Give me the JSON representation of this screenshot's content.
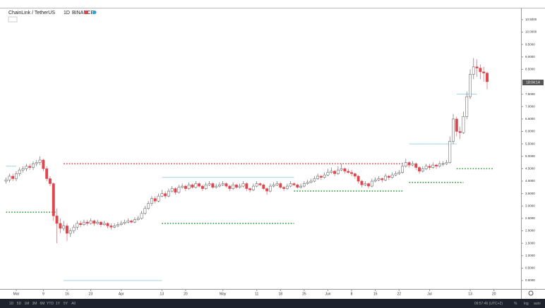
{
  "chart_data": {
    "type": "candlestick",
    "title": "ChainLink / TetherUS",
    "interval": "1D",
    "exchange": "BINANCE",
    "price_tag": "18:04:14",
    "toolbar": [
      "1D",
      "5D",
      "1M",
      "3M",
      "6M",
      "YTD",
      "1Y",
      "5Y",
      "All"
    ],
    "clock": "09:57:46 (UTC+2)",
    "toolbar_right": [
      "%",
      "log",
      "auto"
    ],
    "xlim": [
      -3.125,
      149
    ],
    "xticks": [
      {
        "value": 0,
        "label": "Mar"
      },
      {
        "value": 8,
        "label": "9"
      },
      {
        "value": 15,
        "label": "16"
      },
      {
        "value": 22,
        "label": "23"
      },
      {
        "value": 31,
        "label": "Apr"
      },
      {
        "value": 43,
        "label": "13"
      },
      {
        "value": 50,
        "label": "20"
      },
      {
        "value": 61,
        "label": "May"
      },
      {
        "value": 71,
        "label": "11"
      },
      {
        "value": 78,
        "label": "18"
      },
      {
        "value": 85,
        "label": "25"
      },
      {
        "value": 92,
        "label": "Jun"
      },
      {
        "value": 99,
        "label": "8"
      },
      {
        "value": 106,
        "label": "15"
      },
      {
        "value": 113,
        "label": "22"
      },
      {
        "value": 122,
        "label": "Jul"
      },
      {
        "value": 134,
        "label": "13"
      },
      {
        "value": 141,
        "label": "20"
      }
    ],
    "ylim": [
      -0.34,
      10.95
    ],
    "yticks": [
      {
        "value": 0,
        "label": "0.0000"
      },
      {
        "value": 0.5,
        "label": "0.5000"
      },
      {
        "value": 1,
        "label": "1.0000"
      },
      {
        "value": 1.5,
        "label": "1.5000"
      },
      {
        "value": 2,
        "label": "2.0000"
      },
      {
        "value": 2.5,
        "label": "2.5000"
      },
      {
        "value": 3,
        "label": "3.0000"
      },
      {
        "value": 3.5,
        "label": "3.5000"
      },
      {
        "value": 4,
        "label": "4.0000"
      },
      {
        "value": 4.5,
        "label": "4.5000"
      },
      {
        "value": 5,
        "label": "5.0000"
      },
      {
        "value": 5.5,
        "label": "5.5000"
      },
      {
        "value": 6,
        "label": "6.0000"
      },
      {
        "value": 6.5,
        "label": "6.5000"
      },
      {
        "value": 7,
        "label": "7.0000"
      },
      {
        "value": 7.5,
        "label": "7.5000"
      },
      {
        "value": 8.5,
        "label": "8.5000"
      },
      {
        "value": 9,
        "label": "9.0000"
      },
      {
        "value": 9.5,
        "label": "9.5000"
      },
      {
        "value": 10,
        "label": "10.0000"
      },
      {
        "value": 10.5,
        "label": "10.5000"
      }
    ],
    "up_color": "#ffffff",
    "down_color": "#e0454d",
    "wick_color": "#555555",
    "x": [
      -3,
      -2,
      -1,
      0,
      1,
      2,
      3,
      4,
      5,
      6,
      7,
      8,
      9,
      10,
      11,
      12,
      13,
      14,
      15,
      16,
      17,
      18,
      19,
      20,
      21,
      22,
      23,
      24,
      25,
      26,
      27,
      28,
      29,
      30,
      31,
      32,
      33,
      34,
      35,
      36,
      37,
      38,
      39,
      40,
      41,
      42,
      43,
      44,
      45,
      46,
      47,
      48,
      49,
      50,
      51,
      52,
      53,
      54,
      55,
      56,
      57,
      58,
      59,
      60,
      61,
      62,
      63,
      64,
      65,
      66,
      67,
      68,
      69,
      70,
      71,
      72,
      73,
      74,
      75,
      76,
      77,
      78,
      79,
      80,
      81,
      82,
      83,
      84,
      85,
      86,
      87,
      88,
      89,
      90,
      91,
      92,
      93,
      94,
      95,
      96,
      97,
      98,
      99,
      100,
      101,
      102,
      103,
      104,
      105,
      106,
      107,
      108,
      109,
      110,
      111,
      112,
      113,
      114,
      115,
      116,
      117,
      118,
      119,
      120,
      121,
      122,
      123,
      124,
      125,
      126,
      127,
      128,
      129,
      130,
      131,
      132,
      133,
      134,
      135,
      136,
      137,
      138,
      139
    ],
    "ohlc": [
      [
        4.0,
        4.15,
        3.9,
        4.05
      ],
      [
        4.05,
        4.3,
        3.95,
        4.2
      ],
      [
        4.2,
        4.3,
        4.0,
        4.1
      ],
      [
        4.1,
        4.4,
        4.0,
        4.3
      ],
      [
        4.3,
        4.55,
        4.2,
        4.45
      ],
      [
        4.45,
        4.6,
        4.35,
        4.5
      ],
      [
        4.5,
        4.7,
        4.4,
        4.6
      ],
      [
        4.6,
        4.7,
        4.45,
        4.55
      ],
      [
        4.55,
        4.8,
        4.45,
        4.7
      ],
      [
        4.7,
        4.85,
        4.6,
        4.75
      ],
      [
        4.75,
        5.0,
        4.65,
        4.85
      ],
      [
        4.85,
        4.9,
        4.4,
        4.5
      ],
      [
        4.5,
        4.6,
        4.0,
        4.1
      ],
      [
        4.1,
        4.2,
        3.8,
        3.9
      ],
      [
        3.9,
        3.95,
        2.4,
        2.6
      ],
      [
        2.6,
        2.9,
        1.5,
        2.3
      ],
      [
        2.3,
        2.5,
        1.9,
        2.1
      ],
      [
        2.1,
        2.4,
        2.0,
        2.2
      ],
      [
        2.2,
        2.3,
        1.6,
        1.9
      ],
      [
        1.9,
        2.1,
        1.75,
        2.0
      ],
      [
        2.0,
        2.25,
        1.9,
        2.15
      ],
      [
        2.15,
        2.4,
        2.05,
        2.3
      ],
      [
        2.3,
        2.4,
        2.15,
        2.25
      ],
      [
        2.25,
        2.45,
        2.2,
        2.35
      ],
      [
        2.35,
        2.45,
        2.2,
        2.3
      ],
      [
        2.3,
        2.5,
        2.25,
        2.4
      ],
      [
        2.4,
        2.45,
        2.2,
        2.3
      ],
      [
        2.3,
        2.45,
        2.25,
        2.35
      ],
      [
        2.35,
        2.4,
        2.15,
        2.25
      ],
      [
        2.25,
        2.4,
        2.2,
        2.3
      ],
      [
        2.3,
        2.35,
        2.1,
        2.2
      ],
      [
        2.2,
        2.3,
        2.05,
        2.15
      ],
      [
        2.15,
        2.3,
        2.1,
        2.2
      ],
      [
        2.2,
        2.35,
        2.15,
        2.25
      ],
      [
        2.25,
        2.4,
        2.2,
        2.3
      ],
      [
        2.3,
        2.45,
        2.25,
        2.35
      ],
      [
        2.35,
        2.5,
        2.3,
        2.4
      ],
      [
        2.4,
        2.45,
        2.3,
        2.35
      ],
      [
        2.35,
        2.55,
        2.3,
        2.45
      ],
      [
        2.45,
        2.6,
        2.4,
        2.5
      ],
      [
        2.5,
        2.8,
        2.45,
        2.7
      ],
      [
        2.7,
        3.0,
        2.65,
        2.9
      ],
      [
        2.9,
        3.2,
        2.85,
        3.1
      ],
      [
        3.1,
        3.4,
        3.0,
        3.3
      ],
      [
        3.3,
        3.4,
        3.1,
        3.2
      ],
      [
        3.2,
        3.5,
        3.15,
        3.4
      ],
      [
        3.4,
        3.65,
        3.35,
        3.5
      ],
      [
        3.5,
        3.6,
        3.3,
        3.4
      ],
      [
        3.4,
        3.7,
        3.35,
        3.6
      ],
      [
        3.6,
        3.8,
        3.55,
        3.7
      ],
      [
        3.7,
        3.75,
        3.45,
        3.55
      ],
      [
        3.55,
        3.85,
        3.5,
        3.75
      ],
      [
        3.75,
        3.9,
        3.7,
        3.8
      ],
      [
        3.8,
        3.85,
        3.6,
        3.7
      ],
      [
        3.7,
        3.95,
        3.65,
        3.85
      ],
      [
        3.85,
        3.9,
        3.7,
        3.75
      ],
      [
        3.75,
        4.0,
        3.7,
        3.9
      ],
      [
        3.9,
        3.95,
        3.75,
        3.8
      ],
      [
        3.8,
        3.85,
        3.6,
        3.7
      ],
      [
        3.7,
        3.95,
        3.65,
        3.85
      ],
      [
        3.85,
        4.0,
        3.8,
        3.9
      ],
      [
        3.9,
        3.95,
        3.7,
        3.75
      ],
      [
        3.75,
        3.9,
        3.7,
        3.8
      ],
      [
        3.8,
        3.95,
        3.75,
        3.85
      ],
      [
        3.85,
        4.0,
        3.8,
        3.9
      ],
      [
        3.9,
        3.95,
        3.75,
        3.8
      ],
      [
        3.8,
        3.85,
        3.6,
        3.7
      ],
      [
        3.7,
        3.95,
        3.65,
        3.85
      ],
      [
        3.85,
        3.9,
        3.7,
        3.75
      ],
      [
        3.75,
        3.9,
        3.7,
        3.8
      ],
      [
        3.8,
        4.0,
        3.75,
        3.9
      ],
      [
        3.9,
        3.95,
        3.6,
        3.7
      ],
      [
        3.7,
        3.75,
        3.55,
        3.65
      ],
      [
        3.65,
        3.9,
        3.6,
        3.8
      ],
      [
        3.8,
        4.0,
        3.75,
        3.9
      ],
      [
        3.9,
        3.95,
        3.8,
        3.85
      ],
      [
        3.85,
        3.9,
        3.65,
        3.7
      ],
      [
        3.7,
        3.75,
        3.45,
        3.6
      ],
      [
        3.6,
        3.9,
        3.55,
        3.8
      ],
      [
        3.8,
        3.95,
        3.75,
        3.85
      ],
      [
        3.85,
        4.0,
        3.8,
        3.9
      ],
      [
        3.9,
        3.95,
        3.7,
        3.75
      ],
      [
        3.75,
        3.8,
        3.6,
        3.7
      ],
      [
        3.7,
        3.9,
        3.65,
        3.8
      ],
      [
        3.8,
        4.0,
        3.75,
        3.9
      ],
      [
        3.9,
        3.95,
        3.8,
        3.85
      ],
      [
        3.85,
        3.9,
        3.7,
        3.75
      ],
      [
        3.75,
        3.9,
        3.7,
        3.8
      ],
      [
        3.8,
        4.0,
        3.75,
        3.9
      ],
      [
        3.9,
        4.05,
        3.85,
        3.95
      ],
      [
        3.95,
        4.1,
        3.9,
        4.0
      ],
      [
        4.0,
        4.2,
        3.95,
        4.1
      ],
      [
        4.1,
        4.3,
        4.05,
        4.2
      ],
      [
        4.2,
        4.25,
        4.05,
        4.15
      ],
      [
        4.15,
        4.35,
        4.1,
        4.25
      ],
      [
        4.25,
        4.5,
        4.2,
        4.35
      ],
      [
        4.35,
        4.55,
        4.3,
        4.4
      ],
      [
        4.4,
        4.45,
        4.2,
        4.3
      ],
      [
        4.3,
        4.6,
        4.25,
        4.45
      ],
      [
        4.45,
        4.7,
        4.4,
        4.5
      ],
      [
        4.5,
        4.55,
        4.3,
        4.4
      ],
      [
        4.4,
        4.5,
        4.3,
        4.35
      ],
      [
        4.35,
        4.45,
        4.2,
        4.3
      ],
      [
        4.3,
        4.35,
        4.1,
        4.2
      ],
      [
        4.2,
        4.25,
        3.9,
        4.0
      ],
      [
        4.0,
        4.05,
        3.75,
        3.85
      ],
      [
        3.85,
        4.0,
        3.8,
        3.9
      ],
      [
        3.9,
        3.95,
        3.7,
        3.8
      ],
      [
        3.8,
        4.1,
        3.75,
        4.0
      ],
      [
        4.0,
        4.15,
        3.95,
        4.05
      ],
      [
        4.05,
        4.2,
        4.0,
        4.1
      ],
      [
        4.1,
        4.15,
        3.95,
        4.05
      ],
      [
        4.05,
        4.3,
        4.0,
        4.2
      ],
      [
        4.2,
        4.25,
        4.05,
        4.15
      ],
      [
        4.15,
        4.35,
        4.1,
        4.25
      ],
      [
        4.25,
        4.4,
        4.2,
        4.3
      ],
      [
        4.3,
        4.45,
        4.25,
        4.35
      ],
      [
        4.35,
        4.75,
        4.3,
        4.6
      ],
      [
        4.6,
        4.9,
        4.55,
        4.75
      ],
      [
        4.75,
        4.8,
        4.55,
        4.65
      ],
      [
        4.65,
        4.8,
        4.6,
        4.7
      ],
      [
        4.7,
        4.75,
        4.45,
        4.55
      ],
      [
        4.55,
        4.6,
        4.3,
        4.4
      ],
      [
        4.4,
        4.6,
        4.35,
        4.5
      ],
      [
        4.5,
        4.7,
        4.45,
        4.6
      ],
      [
        4.6,
        4.7,
        4.45,
        4.55
      ],
      [
        4.55,
        4.75,
        4.5,
        4.65
      ],
      [
        4.65,
        4.7,
        4.5,
        4.6
      ],
      [
        4.6,
        4.8,
        4.55,
        4.7
      ],
      [
        4.7,
        4.8,
        4.6,
        4.7
      ],
      [
        4.7,
        4.85,
        4.65,
        4.75
      ],
      [
        4.75,
        5.8,
        4.7,
        5.6
      ],
      [
        5.6,
        6.7,
        5.5,
        6.5
      ],
      [
        6.5,
        6.6,
        5.8,
        6.0
      ],
      [
        6.0,
        6.2,
        5.7,
        5.95
      ],
      [
        5.95,
        6.8,
        5.9,
        6.6
      ],
      [
        6.6,
        7.6,
        6.5,
        7.4
      ],
      [
        7.4,
        8.5,
        7.3,
        8.3
      ],
      [
        8.3,
        8.95,
        8.1,
        8.6
      ],
      [
        8.6,
        8.9,
        8.2,
        8.55
      ],
      [
        8.55,
        8.7,
        8.1,
        8.4
      ],
      [
        8.4,
        8.6,
        8.0,
        8.35
      ],
      [
        8.35,
        8.4,
        7.7,
        8.0
      ]
    ],
    "levels": [
      {
        "value": 4.6,
        "x": [
          -3,
          0
        ],
        "color": "#7fc4e8",
        "style": "solid"
      },
      {
        "value": 2.75,
        "x": [
          -3,
          12
        ],
        "color": "#2e9e3e",
        "style": "dotted"
      },
      {
        "value": 4.7,
        "x": [
          14,
          114
        ],
        "color": "#e0454d",
        "style": "dotted"
      },
      {
        "value": 0,
        "x": [
          14,
          43
        ],
        "color": "#7fc4e8",
        "style": "solid"
      },
      {
        "value": 4.15,
        "x": [
          43,
          82
        ],
        "color": "#7fc4e8",
        "style": "solid"
      },
      {
        "value": 2.3,
        "x": [
          43,
          82
        ],
        "color": "#2e9e3e",
        "style": "dotted"
      },
      {
        "value": 3.6,
        "x": [
          82,
          114
        ],
        "color": "#2e9e3e",
        "style": "dotted"
      },
      {
        "value": 5.5,
        "x": [
          116,
          130
        ],
        "color": "#7fc4e8",
        "style": "solid"
      },
      {
        "value": 3.95,
        "x": [
          116,
          132
        ],
        "color": "#2e9e3e",
        "style": "dotted"
      },
      {
        "value": 7.5,
        "x": [
          130,
          136
        ],
        "color": "#7fc4e8",
        "style": "solid"
      },
      {
        "value": 4.5,
        "x": [
          130,
          141
        ],
        "color": "#2e9e3e",
        "style": "dotted"
      }
    ]
  }
}
